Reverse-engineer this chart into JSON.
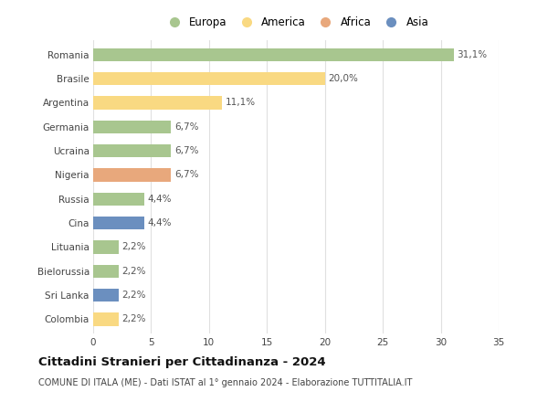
{
  "categories": [
    "Romania",
    "Brasile",
    "Argentina",
    "Germania",
    "Ucraina",
    "Nigeria",
    "Russia",
    "Cina",
    "Lituania",
    "Bielorussia",
    "Sri Lanka",
    "Colombia"
  ],
  "values": [
    31.1,
    20.0,
    11.1,
    6.7,
    6.7,
    6.7,
    4.4,
    4.4,
    2.2,
    2.2,
    2.2,
    2.2
  ],
  "labels": [
    "31,1%",
    "20,0%",
    "11,1%",
    "6,7%",
    "6,7%",
    "6,7%",
    "4,4%",
    "4,4%",
    "2,2%",
    "2,2%",
    "2,2%",
    "2,2%"
  ],
  "colors": [
    "#a8c68f",
    "#f9d982",
    "#f9d982",
    "#a8c68f",
    "#a8c68f",
    "#e8a87c",
    "#a8c68f",
    "#6b8fbf",
    "#a8c68f",
    "#a8c68f",
    "#6b8fbf",
    "#f9d982"
  ],
  "legend_labels": [
    "Europa",
    "America",
    "Africa",
    "Asia"
  ],
  "legend_colors": [
    "#a8c68f",
    "#f9d982",
    "#e8a87c",
    "#6b8fbf"
  ],
  "title": "Cittadini Stranieri per Cittadinanza - 2024",
  "subtitle": "COMUNE DI ITALA (ME) - Dati ISTAT al 1° gennaio 2024 - Elaborazione TUTTITALIA.IT",
  "xlim": [
    0,
    35
  ],
  "xticks": [
    0,
    5,
    10,
    15,
    20,
    25,
    30,
    35
  ],
  "background_color": "#ffffff",
  "grid_color": "#e0e0e0",
  "bar_height": 0.55,
  "label_fontsize": 7.5,
  "tick_fontsize": 7.5
}
